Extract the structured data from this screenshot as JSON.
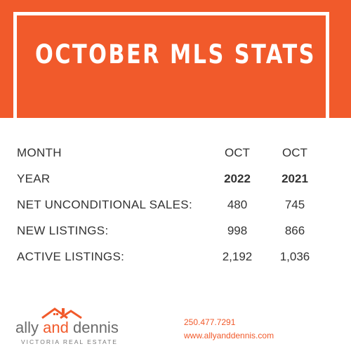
{
  "banner": {
    "title": "OCTOBER MLS STATS"
  },
  "stats": {
    "rows": [
      {
        "label": "MONTH",
        "col1": "OCT",
        "col2": "OCT"
      },
      {
        "label": "YEAR",
        "col1": "2022",
        "col2": "2021"
      },
      {
        "label": "NET UNCONDITIONAL SALES:",
        "col1": "480",
        "col2": "745"
      },
      {
        "label": "NEW LISTINGS:",
        "col1": "998",
        "col2": "866"
      },
      {
        "label": "ACTIVE LISTINGS:",
        "col1": "2,192",
        "col2": "1,036"
      }
    ]
  },
  "footer": {
    "logo": {
      "word1": "ally",
      "word2": "and",
      "word3": "dennis",
      "tagline": "VICTORIA REAL ESTATE"
    },
    "phone": "250.477.7291",
    "website": "www.allyanddennis.com"
  },
  "colors": {
    "accent": "#f15a2b",
    "text": "#333333",
    "background": "#ffffff"
  },
  "icons": {
    "logo": "house-roof-icon"
  }
}
